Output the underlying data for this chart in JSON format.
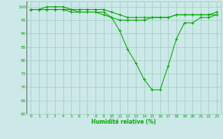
{
  "x": [
    0,
    1,
    2,
    3,
    4,
    5,
    6,
    7,
    8,
    9,
    10,
    11,
    12,
    13,
    14,
    15,
    16,
    17,
    18,
    19,
    20,
    21,
    22,
    23
  ],
  "line1": [
    99,
    99,
    100,
    100,
    100,
    99,
    99,
    99,
    99,
    99,
    98,
    97,
    96,
    96,
    96,
    96,
    96,
    96,
    97,
    97,
    97,
    97,
    97,
    98
  ],
  "line2": [
    99,
    99,
    99,
    99,
    99,
    99,
    98,
    98,
    98,
    98,
    96,
    91,
    84,
    79,
    73,
    69,
    69,
    78,
    88,
    94,
    94,
    96,
    96,
    97
  ],
  "line3": [
    99,
    99,
    99,
    99,
    99,
    98,
    98,
    98,
    98,
    97,
    96,
    95,
    95,
    95,
    95,
    96,
    96,
    96,
    97,
    97,
    97,
    97,
    97,
    97
  ],
  "line_color": "#00aa00",
  "bg_color": "#cce8e8",
  "grid_color": "#99ccbb",
  "xlabel": "Humidité relative (%)",
  "xlabel_color": "#00aa00",
  "ylim": [
    60,
    102
  ],
  "yticks": [
    60,
    65,
    70,
    75,
    80,
    85,
    90,
    95,
    100
  ],
  "xticks": [
    0,
    1,
    2,
    3,
    4,
    5,
    6,
    7,
    8,
    9,
    10,
    11,
    12,
    13,
    14,
    15,
    16,
    17,
    18,
    19,
    20,
    21,
    22,
    23
  ],
  "tick_color": "#00aa00",
  "marker": "+",
  "markersize": 3,
  "linewidth": 0.8
}
